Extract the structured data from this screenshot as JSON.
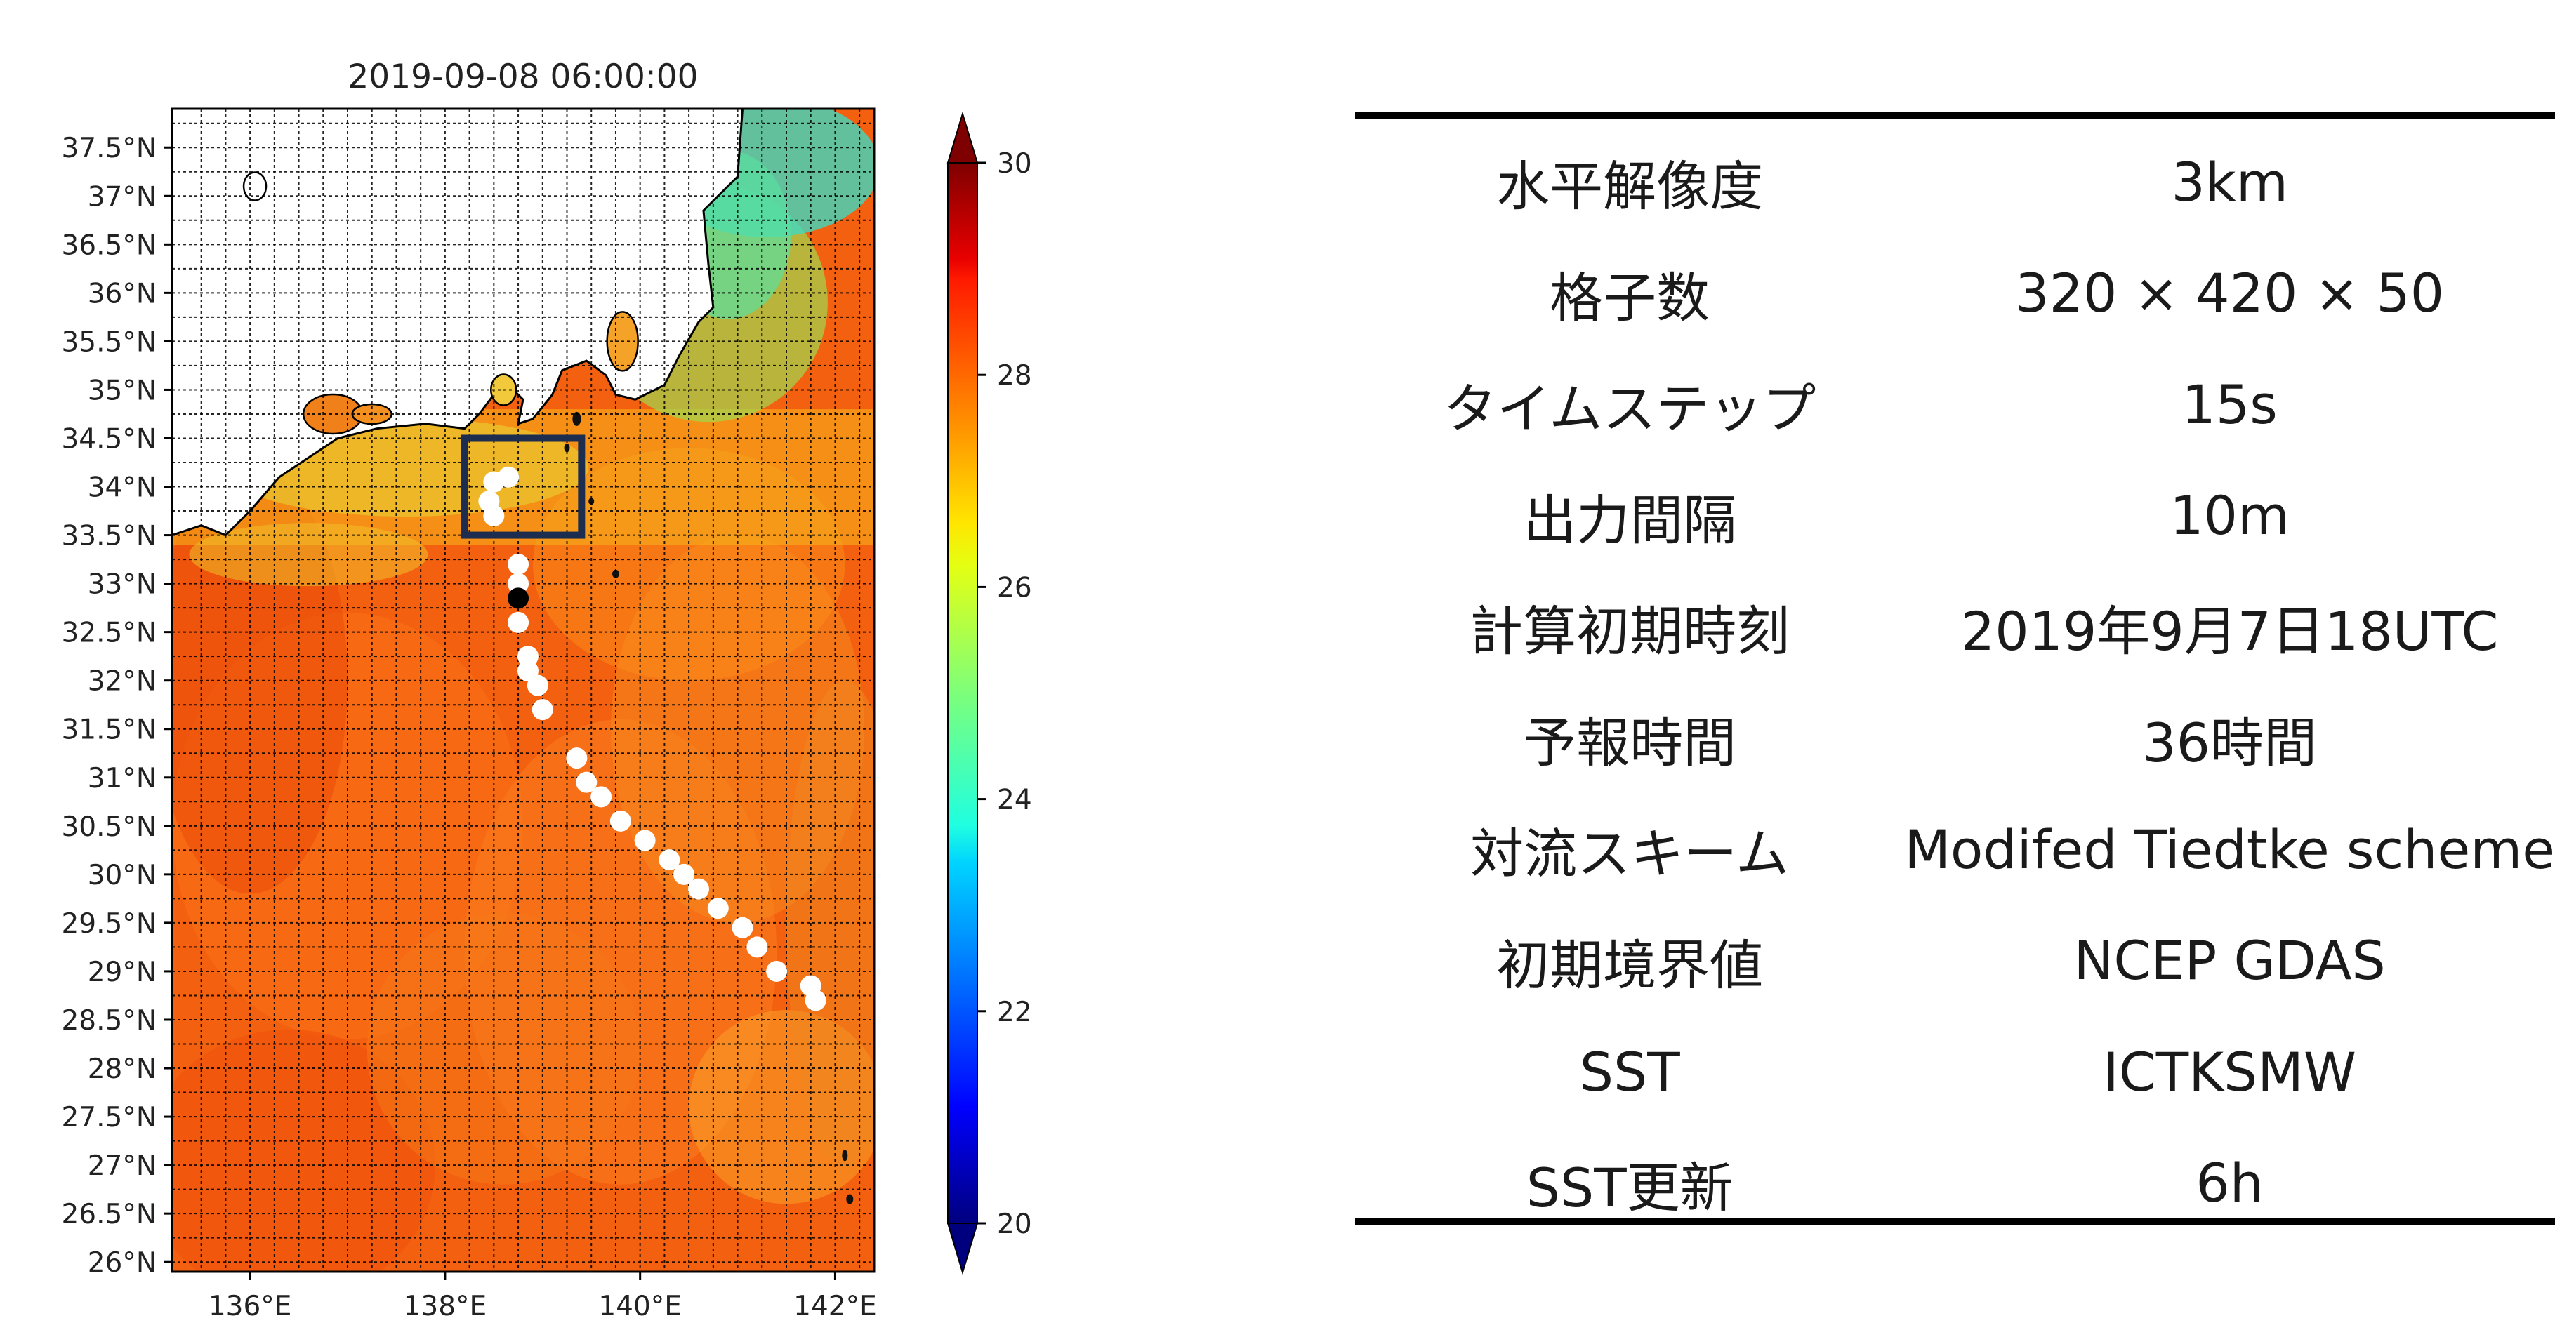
{
  "chart_data": {
    "type": "heatmap",
    "title": "2019-09-08 06:00:00",
    "xlabel": "",
    "ylabel": "",
    "xlim": [
      135.2,
      142.4
    ],
    "ylim": [
      25.9,
      37.9
    ],
    "x_ticks": [
      136,
      138,
      140,
      142
    ],
    "x_tick_labels": [
      "136°E",
      "138°E",
      "140°E",
      "142°E"
    ],
    "y_ticks": [
      26,
      26.5,
      27,
      27.5,
      28,
      28.5,
      29,
      29.5,
      30,
      30.5,
      31,
      31.5,
      32,
      32.5,
      33,
      33.5,
      34,
      34.5,
      35,
      35.5,
      36,
      36.5,
      37,
      37.5
    ],
    "y_tick_labels": [
      "26°N",
      "26.5°N",
      "27°N",
      "27.5°N",
      "28°N",
      "28.5°N",
      "29°N",
      "29.5°N",
      "30°N",
      "30.5°N",
      "31°N",
      "31.5°N",
      "32°N",
      "32.5°N",
      "33°N",
      "33.5°N",
      "34°N",
      "34.5°N",
      "35°N",
      "35.5°N",
      "36°N",
      "36.5°N",
      "37°N",
      "37.5°N"
    ],
    "grid": true,
    "colorbar": {
      "range": [
        20,
        30
      ],
      "ticks": [
        20,
        22,
        24,
        26,
        28,
        30
      ],
      "tick_labels": [
        "20",
        "22",
        "24",
        "26",
        "28",
        "30"
      ],
      "colormap": "jet",
      "extend": "both"
    },
    "field_description": "SST mostly 28-29 south of 34N, 26-27 near coast, cooler (22-25) along the northeast coast",
    "track_points": [
      {
        "lon": 141.8,
        "lat": 28.7
      },
      {
        "lon": 141.75,
        "lat": 28.85
      },
      {
        "lon": 141.4,
        "lat": 29.0
      },
      {
        "lon": 141.2,
        "lat": 29.25
      },
      {
        "lon": 141.05,
        "lat": 29.45
      },
      {
        "lon": 140.8,
        "lat": 29.65
      },
      {
        "lon": 140.6,
        "lat": 29.85
      },
      {
        "lon": 140.45,
        "lat": 30.0
      },
      {
        "lon": 140.3,
        "lat": 30.15
      },
      {
        "lon": 140.05,
        "lat": 30.35
      },
      {
        "lon": 139.8,
        "lat": 30.55
      },
      {
        "lon": 139.6,
        "lat": 30.8
      },
      {
        "lon": 139.45,
        "lat": 30.95
      },
      {
        "lon": 139.35,
        "lat": 31.2
      },
      {
        "lon": 139.0,
        "lat": 31.7
      },
      {
        "lon": 138.95,
        "lat": 31.95
      },
      {
        "lon": 138.85,
        "lat": 32.1
      },
      {
        "lon": 138.85,
        "lat": 32.25
      },
      {
        "lon": 138.75,
        "lat": 32.6
      },
      {
        "lon": 138.75,
        "lat": 33.0
      },
      {
        "lon": 138.75,
        "lat": 33.2
      },
      {
        "lon": 138.5,
        "lat": 33.7
      },
      {
        "lon": 138.45,
        "lat": 33.85
      },
      {
        "lon": 138.5,
        "lat": 34.05
      },
      {
        "lon": 138.65,
        "lat": 34.1
      }
    ],
    "current_position": {
      "lon": 138.75,
      "lat": 32.85
    },
    "highlight_box": {
      "lon_min": 138.2,
      "lon_max": 139.4,
      "lat_min": 33.5,
      "lat_max": 34.5
    }
  },
  "table": {
    "rows": [
      {
        "label": "水平解像度",
        "value": "3km"
      },
      {
        "label": "格子数",
        "value": "320 × 420 × 50"
      },
      {
        "label": "タイムステップ",
        "value": "15s"
      },
      {
        "label": "出力間隔",
        "value": "10m"
      },
      {
        "label": "計算初期時刻",
        "value": "2019年9月7日18UTC"
      },
      {
        "label": "予報時間",
        "value": "36時間"
      },
      {
        "label": "対流スキーム",
        "value": "Modifed Tiedtke scheme"
      },
      {
        "label": "初期境界値",
        "value": "NCEP GDAS"
      },
      {
        "label": "SST",
        "value": "ICTKSMW"
      },
      {
        "label": "SST更新",
        "value": "6h"
      }
    ]
  }
}
